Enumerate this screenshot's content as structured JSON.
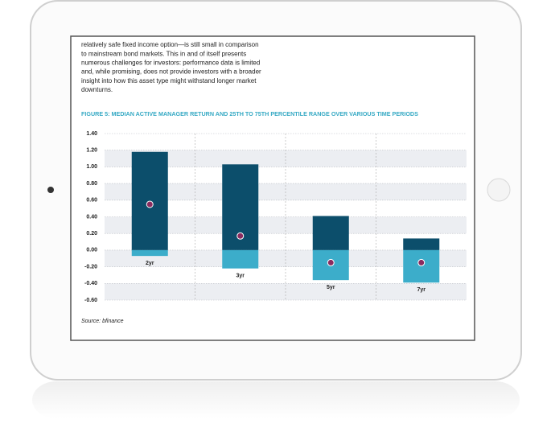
{
  "document": {
    "lines": [
      "relatively safe fixed income option—is still small in comparison",
      "to mainstream bond markets. This in and of itself presents",
      "numerous challenges for investors: performance data is limited",
      "and, while promising, does not provide investors with a broader",
      "insight into how this asset type might withstand longer market",
      "downturns."
    ],
    "source": "Source: bfinance"
  },
  "chart_data": {
    "type": "range",
    "title": "FIGURE 5: MEDIAN ACTIVE MANAGER RETURN AND 25TH TO 75TH PERCENTILE RANGE OVER VARIOUS TIME PERIODS",
    "categories": [
      "2yr",
      "3yr",
      "5yr",
      "7yr"
    ],
    "high": [
      1.18,
      1.03,
      0.41,
      0.14
    ],
    "low": [
      -0.07,
      -0.22,
      -0.36,
      -0.39
    ],
    "median": [
      0.55,
      0.17,
      -0.15,
      -0.15
    ],
    "high_color": "#0c4e6b",
    "low_color": "#3cadca",
    "median_color": "#8a2b5f",
    "ylim": [
      -0.6,
      1.4
    ],
    "yticks": [
      {
        "value": 1.4,
        "label": "1.40"
      },
      {
        "value": 1.2,
        "label": "1.20"
      },
      {
        "value": 1.0,
        "label": "1.00"
      },
      {
        "value": 0.8,
        "label": "0.80"
      },
      {
        "value": 0.6,
        "label": "0.60"
      },
      {
        "value": 0.4,
        "label": "0.40"
      },
      {
        "value": 0.2,
        "label": "0.20"
      },
      {
        "value": 0,
        "label": "0.00"
      },
      {
        "value": -0.2,
        "label": "-0.20"
      },
      {
        "value": -0.4,
        "label": "-0.40"
      },
      {
        "value": -0.6,
        "label": "-0.60"
      }
    ],
    "grid": true
  }
}
